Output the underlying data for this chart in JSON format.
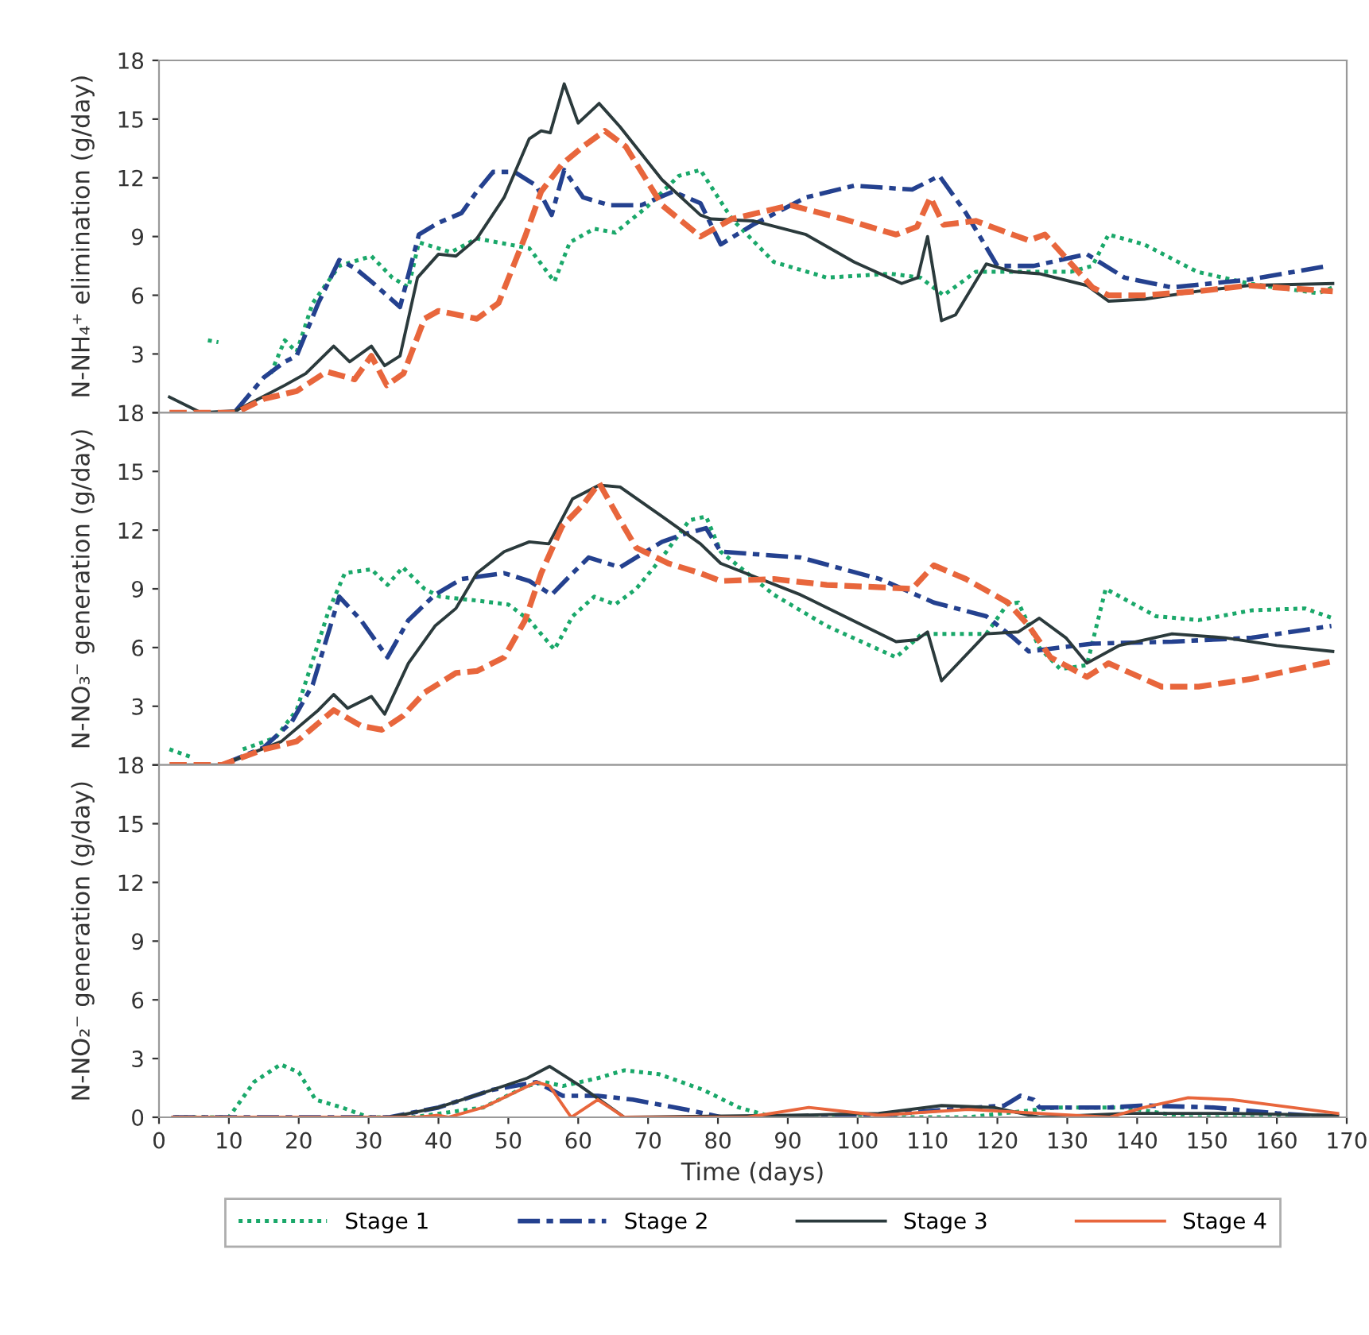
{
  "chart_data": [
    {
      "type": "line",
      "ylabel": "N-NH₄⁺ elimination (g/day)",
      "xlim": [
        0,
        170
      ],
      "xticks": [
        0,
        10,
        20,
        30,
        40,
        50,
        60,
        70,
        80,
        90,
        100,
        110,
        120,
        130,
        140,
        150,
        160,
        170
      ],
      "ylim": [
        0,
        18
      ],
      "yticks": [
        {
          "value": 0,
          "label": null
        },
        3,
        6,
        9,
        12,
        15,
        18
      ],
      "tick_labels": "y",
      "grid": false,
      "legend": false,
      "series": [
        {
          "color": "#1aa86a",
          "line_style": "dotted",
          "x": [
            7,
            8.5,
            15,
            16,
            18,
            19.7,
            22,
            25.8,
            30.4,
            33.4,
            35.7,
            37.2,
            41.8,
            45.5,
            50,
            53,
            56.6,
            58.8,
            62.3,
            65.3,
            69.8,
            74.4,
            77.5,
            82,
            88,
            95.6,
            104.7,
            109,
            112.3,
            116.9,
            123,
            130.5,
            133.6,
            135.9,
            141,
            148.6,
            156,
            165.9,
            168
          ],
          "values": [
            3.7,
            3.6,
            null,
            2.0,
            3.7,
            3.1,
            5.6,
            7.5,
            8.0,
            6.9,
            6.4,
            8.7,
            8.2,
            8.9,
            8.6,
            8.4,
            6.7,
            8.7,
            9.4,
            9.2,
            10.5,
            12.1,
            12.4,
            9.9,
            7.7,
            6.9,
            7.1,
            6.9,
            6.0,
            7.2,
            7.2,
            7.2,
            7.5,
            9.1,
            8.6,
            7.2,
            6.6,
            6.1,
            6.4
          ]
        },
        {
          "color": "#24418f",
          "line_style": "dashdot",
          "x": [
            11,
            15,
            18,
            19.7,
            22.8,
            25.8,
            28,
            30.4,
            34.5,
            37.2,
            40,
            43.3,
            45.5,
            47.8,
            50.9,
            54,
            56.2,
            58,
            60.7,
            64.5,
            69,
            73.6,
            77.5,
            80.4,
            85,
            92.6,
            99.5,
            107.8,
            111.7,
            115.5,
            120,
            125.2,
            132.8,
            138.2,
            145,
            156,
            167.4
          ],
          "values": [
            0.1,
            1.8,
            2.6,
            2.9,
            5.6,
            7.8,
            7.4,
            6.7,
            5.4,
            9.1,
            9.7,
            10.2,
            11.3,
            12.3,
            12.3,
            11.6,
            10.1,
            12.4,
            11.0,
            10.6,
            10.6,
            11.3,
            10.7,
            8.6,
            9.6,
            11.0,
            11.6,
            11.4,
            12.1,
            10.2,
            7.5,
            7.5,
            8.1,
            6.9,
            6.4,
            6.8,
            7.5
          ]
        },
        {
          "color": "#2b3a3c",
          "line_style": "solid",
          "x": [
            1.5,
            6,
            11,
            18,
            21,
            25,
            27.3,
            30.4,
            32.3,
            34.5,
            37,
            40,
            42.5,
            45.5,
            49.4,
            53,
            54.7,
            56,
            58,
            60,
            63,
            66,
            72,
            77.5,
            79,
            85,
            92.6,
            99.5,
            106.3,
            108.6,
            110,
            112,
            114,
            118.4,
            122.3,
            126,
            132.8,
            135.9,
            141,
            148.6,
            156,
            168
          ],
          "values": [
            0.8,
            0,
            0.1,
            1.4,
            2.0,
            3.4,
            2.6,
            3.4,
            2.4,
            2.9,
            6.9,
            8.1,
            8.0,
            8.9,
            11.0,
            14.0,
            14.4,
            14.3,
            16.8,
            14.8,
            15.8,
            14.6,
            11.9,
            10.1,
            9.9,
            9.8,
            9.1,
            7.7,
            6.6,
            6.9,
            9.0,
            4.7,
            5.0,
            7.6,
            7.2,
            7.1,
            6.5,
            5.7,
            5.8,
            6.2,
            6.5,
            6.6
          ]
        },
        {
          "color": "#e8663c",
          "line_style": "dashed",
          "x": [
            1.5,
            11,
            15,
            19.7,
            24,
            28,
            30.4,
            32.6,
            35,
            38,
            40,
            45.5,
            48.6,
            52.4,
            54.7,
            57.7,
            60.7,
            63.8,
            66.8,
            72,
            77.5,
            82,
            90.4,
            97.9,
            105.5,
            108.5,
            110.4,
            112.3,
            116.9,
            121.4,
            124.5,
            126.8,
            133.6,
            135.9,
            141,
            148.6,
            156,
            168
          ],
          "values": [
            0,
            0,
            0.7,
            1.1,
            2.1,
            1.7,
            2.9,
            1.4,
            2.0,
            4.8,
            5.2,
            4.8,
            5.6,
            9.0,
            11.3,
            12.7,
            13.6,
            14.4,
            13.6,
            10.6,
            9.0,
            9.9,
            10.6,
            9.9,
            9.1,
            9.5,
            11.0,
            9.6,
            9.8,
            9.2,
            8.8,
            9.1,
            6.4,
            6.0,
            6.0,
            6.2,
            6.5,
            6.2
          ]
        }
      ]
    },
    {
      "type": "line",
      "ylabel": "N-NO₃⁻ generation (g/day)",
      "xlim": [
        0,
        170
      ],
      "xticks": [
        0,
        10,
        20,
        30,
        40,
        50,
        60,
        70,
        80,
        90,
        100,
        110,
        120,
        130,
        140,
        150,
        160,
        170
      ],
      "ylim": [
        0,
        18
      ],
      "yticks": [
        {
          "value": 0,
          "label": null
        },
        3,
        6,
        9,
        12,
        15,
        18
      ],
      "tick_labels": "y",
      "grid": false,
      "legend": false,
      "series": [
        {
          "color": "#1aa86a",
          "line_style": "dotted",
          "x": [
            1.5,
            4.6,
            8,
            12,
            16.7,
            19.7,
            24.3,
            26.6,
            30.4,
            32.7,
            34.9,
            38,
            40.2,
            45.5,
            50,
            53,
            56.6,
            59.2,
            62.3,
            65.3,
            68.3,
            72,
            75.9,
            78.3,
            80.4,
            88,
            95.6,
            105.5,
            109.2,
            112.9,
            118.4,
            121.4,
            123,
            126,
            129,
            132.8,
            135.5,
            142.7,
            148.8,
            156.4,
            164,
            168
          ],
          "values": [
            0.8,
            0.4,
            null,
            0.8,
            1.4,
            2.8,
            7.9,
            9.8,
            10.0,
            9.2,
            10.1,
            9.0,
            8.6,
            8.4,
            8.2,
            7.4,
            5.9,
            7.6,
            8.6,
            8.2,
            9.0,
            10.6,
            12.5,
            12.7,
            10.9,
            8.7,
            7.1,
            5.5,
            6.7,
            6.7,
            6.7,
            8.2,
            8.3,
            6.0,
            4.9,
            5.1,
            9.0,
            7.6,
            7.4,
            7.9,
            8.0,
            7.5
          ]
        },
        {
          "color": "#24418f",
          "line_style": "dashdot",
          "x": [
            9,
            15,
            19,
            22,
            25.8,
            28.9,
            32.7,
            35.7,
            39.5,
            43.3,
            49.4,
            53,
            56.2,
            59.2,
            61.5,
            66,
            72,
            75.2,
            78.3,
            80.4,
            91.8,
            103.2,
            110.9,
            118.4,
            122.3,
            124.5,
            133.6,
            145,
            156.4,
            167.8
          ],
          "values": [
            0,
            0.9,
            2.2,
            4.1,
            8.6,
            7.4,
            5.5,
            7.4,
            8.7,
            9.5,
            9.8,
            9.4,
            8.7,
            9.8,
            10.6,
            10.1,
            11.4,
            11.8,
            12.1,
            10.9,
            10.6,
            9.5,
            8.3,
            7.6,
            6.5,
            5.8,
            6.2,
            6.3,
            6.5,
            7.1
          ]
        },
        {
          "color": "#2b3a3c",
          "line_style": "solid",
          "x": [
            2.3,
            9,
            17.5,
            22.8,
            25,
            27,
            30.4,
            32.3,
            35.7,
            39.5,
            42.5,
            45.5,
            49.4,
            53,
            55.8,
            59.2,
            63,
            66,
            72,
            77.5,
            80.4,
            91.8,
            105.5,
            108.5,
            110,
            112,
            118.4,
            123,
            126,
            129.8,
            132.8,
            137.4,
            145,
            152.6,
            160,
            168
          ],
          "values": [
            0,
            0,
            1.2,
            2.8,
            3.6,
            2.9,
            3.5,
            2.6,
            5.2,
            7.1,
            8.0,
            9.8,
            10.9,
            11.4,
            11.3,
            13.6,
            14.3,
            14.2,
            12.7,
            11.3,
            10.3,
            8.7,
            6.3,
            6.4,
            6.8,
            4.3,
            6.7,
            6.8,
            7.5,
            6.5,
            5.2,
            6.1,
            6.7,
            6.5,
            6.1,
            5.8
          ]
        },
        {
          "color": "#e8663c",
          "line_style": "dashed",
          "x": [
            1.5,
            9,
            15,
            19.7,
            25,
            28.9,
            31.9,
            34.9,
            38,
            42.5,
            45.5,
            49.4,
            52.4,
            54.7,
            57.7,
            60.7,
            63,
            66,
            68.3,
            72.9,
            77.5,
            80.4,
            88,
            95.6,
            107.8,
            110.9,
            115.5,
            121.5,
            124.5,
            127.6,
            132.8,
            135.9,
            143.5,
            148.8,
            156.4,
            168
          ],
          "values": [
            0,
            0,
            0.8,
            1.2,
            2.8,
            2.0,
            1.8,
            2.5,
            3.7,
            4.7,
            4.8,
            5.5,
            7.4,
            9.8,
            12.2,
            13.3,
            14.4,
            12.5,
            11.1,
            10.3,
            9.8,
            9.4,
            9.5,
            9.2,
            9.0,
            10.2,
            9.5,
            8.3,
            7.1,
            5.5,
            4.5,
            5.2,
            4.0,
            4.0,
            4.4,
            5.3
          ]
        }
      ]
    },
    {
      "type": "line",
      "xlabel": "Time (days)",
      "ylabel": "N-NO₂⁻ generation (g/day)",
      "xlim": [
        0,
        170
      ],
      "xticks": [
        0,
        10,
        20,
        30,
        40,
        50,
        60,
        70,
        80,
        90,
        100,
        110,
        120,
        130,
        140,
        150,
        160,
        170
      ],
      "ylim": [
        0,
        18
      ],
      "yticks": [
        0,
        3,
        6,
        9,
        12,
        15,
        18
      ],
      "grid": false,
      "legend": "bottom",
      "series": [
        {
          "name": "Stage 1",
          "color": "#1aa86a",
          "line_style": "dotted",
          "x": [
            2.3,
            10,
            13.6,
            17.4,
            20,
            22.4,
            26.2,
            30,
            36.3,
            46.4,
            52.7,
            55.2,
            57.8,
            62.8,
            66.6,
            71.6,
            77.9,
            83,
            88,
            103,
            115.8,
            128.4,
            138.5,
            147,
            168.7
          ],
          "values": [
            0,
            0,
            1.8,
            2.7,
            2.3,
            0.9,
            0.5,
            0,
            0,
            0.5,
            1.6,
            1.8,
            1.6,
            2.0,
            2.4,
            2.2,
            1.4,
            0.5,
            0,
            0,
            0,
            0.5,
            0.5,
            0,
            0
          ]
        },
        {
          "name": "Stage 2",
          "color": "#24418f",
          "line_style": "dashdot",
          "x": [
            2,
            33,
            40,
            47.7,
            54,
            57.8,
            62.8,
            67.8,
            75.4,
            80.5,
            90.5,
            103,
            113,
            121,
            123.3,
            125.2,
            126,
            136,
            141,
            151,
            160,
            168.7
          ],
          "values": [
            0,
            0,
            0.5,
            1.4,
            1.8,
            1.1,
            1.1,
            0.9,
            0.4,
            0,
            0,
            0.1,
            0.4,
            0.6,
            1.1,
            0.9,
            0.5,
            0.5,
            0.6,
            0.5,
            0.2,
            0
          ]
        },
        {
          "name": "Stage 3",
          "color": "#2b3a3c",
          "line_style": "solid",
          "x": [
            2,
            33,
            40,
            47.7,
            52.7,
            55.9,
            60.3,
            66.6,
            90.5,
            103,
            112,
            119.5,
            126,
            138.5,
            153.6,
            168.7
          ],
          "values": [
            0,
            0,
            0.5,
            1.4,
            2.0,
            2.6,
            1.6,
            0,
            0.1,
            0.2,
            0.6,
            0.5,
            0,
            0.2,
            0.2,
            0.1
          ]
        },
        {
          "name": "Stage 4",
          "color": "#e8663c",
          "line_style": "solid",
          "x": [
            2,
            37,
            40,
            41.4,
            46.4,
            54,
            55.9,
            59,
            62.8,
            66.6,
            84.2,
            93,
            103,
            115.8,
            126,
            136,
            141,
            147.3,
            153.6,
            168.7
          ],
          "values": [
            0,
            0,
            0.1,
            0,
            0.5,
            1.8,
            1.6,
            0,
            0.9,
            0,
            0,
            0.5,
            0.1,
            0.4,
            0.2,
            0,
            0.5,
            1.0,
            0.9,
            0.2
          ]
        }
      ]
    }
  ]
}
